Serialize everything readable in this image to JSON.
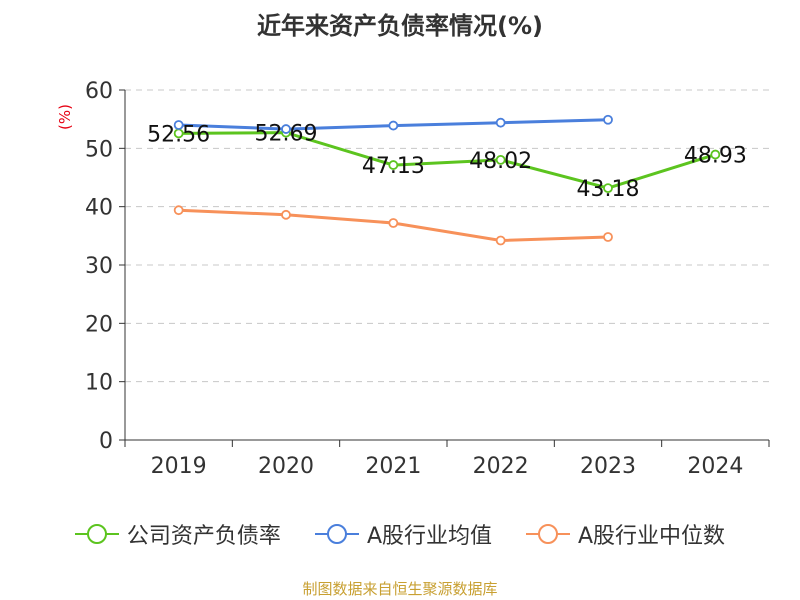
{
  "title": "近年来资产负债率情况(%)",
  "unit_label": "(%)",
  "source": "制图数据来自恒生聚源数据库",
  "chart_data": {
    "type": "line",
    "categories": [
      "2019",
      "2020",
      "2021",
      "2022",
      "2023",
      "2024"
    ],
    "ylim": [
      0,
      60
    ],
    "yticks": [
      0,
      10,
      20,
      30,
      40,
      50,
      60
    ],
    "grid": true,
    "legend_position": "bottom",
    "series": [
      {
        "name": "公司资产负债率",
        "color": "#5cc41f",
        "values": [
          52.56,
          52.69,
          47.13,
          48.02,
          43.18,
          48.93
        ],
        "labels": [
          "52.56",
          "52.69",
          "47.13",
          "48.02",
          "43.18",
          "48.93"
        ]
      },
      {
        "name": "A股行业均值",
        "color": "#4a7fdc",
        "values": [
          54.0,
          53.3,
          53.9,
          54.4,
          54.9,
          null
        ]
      },
      {
        "name": "A股行业中位数",
        "color": "#f7915a",
        "values": [
          39.4,
          38.6,
          37.2,
          34.2,
          34.8,
          null
        ]
      }
    ]
  }
}
